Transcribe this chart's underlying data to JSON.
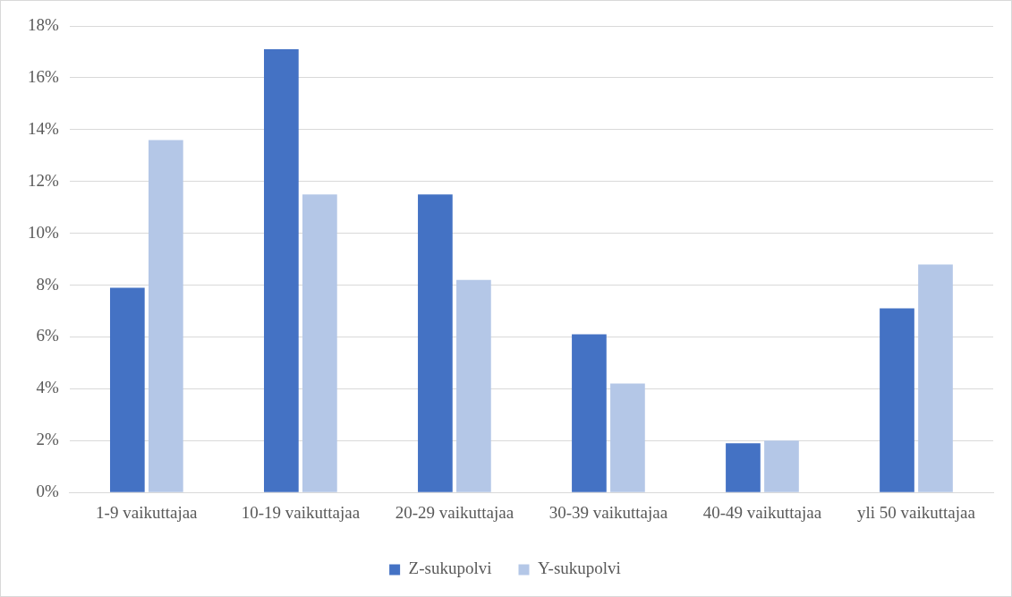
{
  "chart_data": {
    "type": "bar",
    "categories": [
      "1-9 vaikuttajaa",
      "10-19 vaikuttajaa",
      "20-29 vaikuttajaa",
      "30-39 vaikuttajaa",
      "40-49 vaikuttajaa",
      "yli 50 vaikuttajaa"
    ],
    "series": [
      {
        "name": "Z-sukupolvi",
        "color": "#4472c4",
        "values": [
          7.9,
          17.1,
          11.5,
          6.1,
          1.9,
          7.1
        ]
      },
      {
        "name": "Y-sukupolvi",
        "color": "#b4c7e7",
        "values": [
          13.6,
          11.5,
          8.2,
          4.2,
          2.0,
          8.8
        ]
      }
    ],
    "ylim": [
      0,
      18
    ],
    "yticks": [
      {
        "value": 0,
        "label": "0%"
      },
      {
        "value": 2,
        "label": "2%"
      },
      {
        "value": 4,
        "label": "4%"
      },
      {
        "value": 6,
        "label": "6%"
      },
      {
        "value": 8,
        "label": "8%"
      },
      {
        "value": 10,
        "label": "10%"
      },
      {
        "value": 12,
        "label": "12%"
      },
      {
        "value": 14,
        "label": "14%"
      },
      {
        "value": 16,
        "label": "16%"
      },
      {
        "value": 18,
        "label": "18%"
      }
    ],
    "grid": "y",
    "legend": "bottom"
  }
}
